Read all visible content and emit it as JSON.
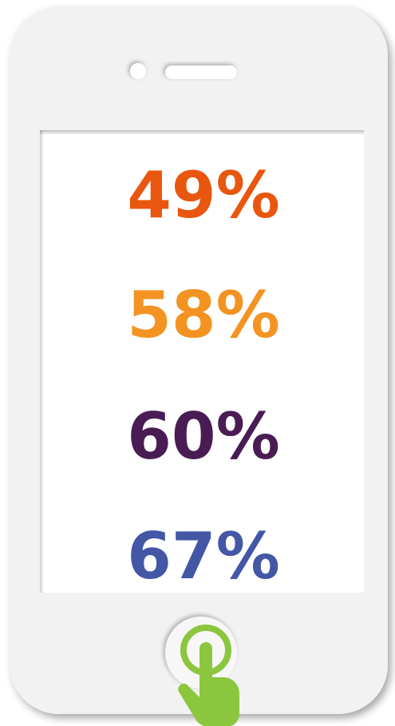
{
  "stats": [
    {
      "text": "49%",
      "color": "#e8560f"
    },
    {
      "text": "58%",
      "color": "#f39322"
    },
    {
      "text": "60%",
      "color": "#4a1c54"
    },
    {
      "text": "67%",
      "color": "#4357a6"
    }
  ]
}
